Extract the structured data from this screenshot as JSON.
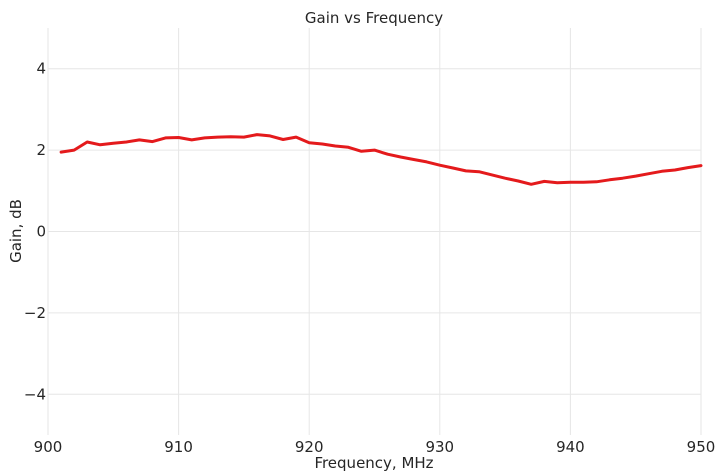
{
  "chart_data": {
    "type": "line",
    "title": "Gain vs Frequency",
    "xlabel": "Frequency, MHz",
    "ylabel": "Gain, dB",
    "xlim": [
      900,
      950
    ],
    "ylim": [
      -5,
      5
    ],
    "xticks": [
      900,
      910,
      920,
      930,
      940,
      950
    ],
    "yticks": [
      -4,
      -2,
      0,
      2,
      4
    ],
    "ytick_labels": [
      "−4",
      "−2",
      "0",
      "2",
      "4"
    ],
    "grid": true,
    "legend": "none",
    "series": [
      {
        "color": "#e41a1c",
        "x": [
          901,
          902,
          903,
          904,
          905,
          906,
          907,
          908,
          909,
          910,
          911,
          912,
          913,
          914,
          915,
          916,
          917,
          918,
          919,
          920,
          921,
          922,
          923,
          924,
          925,
          926,
          927,
          928,
          929,
          930,
          931,
          932,
          933,
          934,
          935,
          936,
          937,
          938,
          939,
          940,
          941,
          942,
          943,
          944,
          945,
          946,
          947,
          948,
          949,
          950
        ],
        "y": [
          1.95,
          2.0,
          2.2,
          2.13,
          2.17,
          2.2,
          2.25,
          2.21,
          2.3,
          2.31,
          2.25,
          2.3,
          2.32,
          2.33,
          2.32,
          2.38,
          2.35,
          2.26,
          2.32,
          2.18,
          2.15,
          2.1,
          2.07,
          1.97,
          2.0,
          1.9,
          1.83,
          1.77,
          1.71,
          1.63,
          1.56,
          1.49,
          1.47,
          1.39,
          1.31,
          1.24,
          1.16,
          1.23,
          1.2,
          1.21,
          1.21,
          1.22,
          1.27,
          1.31,
          1.36,
          1.42,
          1.48,
          1.51,
          1.57,
          1.62
        ]
      }
    ]
  }
}
